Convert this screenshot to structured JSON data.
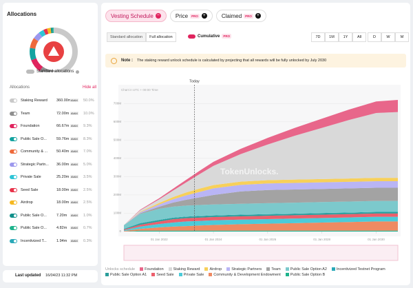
{
  "sidebar": {
    "title": "Allocations",
    "toggle_label": "Standard allocations",
    "list_title": "Allocations",
    "hide_all": "Hide all",
    "unit": "AVAX",
    "rows": [
      {
        "name": "Staking Reward",
        "amount": "360.00m",
        "share": {
          "value": 50.0,
          "label": "50.0%"
        },
        "color": "#c9c9c9"
      },
      {
        "name": "Team",
        "amount": "72.00m",
        "share": {
          "value": 10.0,
          "label": "10.0%"
        },
        "color": "#8f8f8f"
      },
      {
        "name": "Foundation",
        "amount": "66.67m",
        "share": {
          "value": 9.3,
          "label": "9.3%"
        },
        "color": "#e0245e"
      },
      {
        "name": "Public Sale O...",
        "amount": "59.76m",
        "share": {
          "value": 8.3,
          "label": "8.3%"
        },
        "color": "#14a3a0"
      },
      {
        "name": "Community & ...",
        "amount": "50.40m",
        "share": {
          "value": 7.0,
          "label": "7.0%"
        },
        "color": "#ee6a3c"
      },
      {
        "name": "Strategic Partn...",
        "amount": "36.00m",
        "share": {
          "value": 5.0,
          "label": "5.0%"
        },
        "color": "#9c98ee"
      },
      {
        "name": "Private Sale",
        "amount": "25.20m",
        "share": {
          "value": 3.5,
          "label": "3.5%"
        },
        "color": "#2fc4d6"
      },
      {
        "name": "Seed Sale",
        "amount": "18.00m",
        "share": {
          "value": 2.5,
          "label": "2.5%"
        },
        "color": "#e8334a"
      },
      {
        "name": "Airdrop",
        "amount": "18.00m",
        "share": {
          "value": 2.5,
          "label": "2.5%"
        },
        "color": "#f5b820"
      },
      {
        "name": "Public Sale O...",
        "amount": "7.20m",
        "share": {
          "value": 1.0,
          "label": "1.0%"
        },
        "color": "#0f8f8a"
      },
      {
        "name": "Public Sale O...",
        "amount": "4.82m",
        "share": {
          "value": 0.7,
          "label": "0.7%"
        },
        "color": "#1eb38c"
      },
      {
        "name": "Incentivized T...",
        "amount": "1.94m",
        "share": {
          "value": 0.3,
          "label": "0.3%"
        },
        "color": "#2aa9b8"
      }
    ],
    "last_updated_label": "Last updated",
    "last_updated": "16/04/23 11:32 PM"
  },
  "tabs": [
    {
      "label": "Vesting Schedule"
    },
    {
      "label": "Price",
      "badge": "PRO"
    },
    {
      "label": "Claimed",
      "badge": "PRO"
    }
  ],
  "controls": {
    "allocation_buttons": [
      "Standard allocation",
      "Full allocation"
    ],
    "cumulative": "Cumulative",
    "cumulative_badge": "PRO",
    "ranges": [
      "7D",
      "1M",
      "1Y",
      "All"
    ],
    "intervals": [
      "D",
      "W",
      "M"
    ]
  },
  "note": {
    "label": "Note :",
    "text": "The staking reward unlock schedule is calculated by projecting that all rewards will be fully unlocked by July 2030"
  },
  "chart_data": {
    "type": "area",
    "stacked": true,
    "subtitle": "Chart in UTC + 00:00 Time",
    "watermark": "TokenUnlocks.",
    "legend_title": "Unlocks schedule",
    "annotations": [
      {
        "text": "Today",
        "x": 2023.3
      }
    ],
    "x": [
      2020.7,
      2021.3,
      2022,
      2022.5,
      2023,
      2023.5,
      2024,
      2025,
      2026,
      2027,
      2028,
      2029,
      2030,
      2030.8
    ],
    "xlim": [
      2020.7,
      2030.8
    ],
    "xticks": [
      {
        "value": 2022,
        "label": "01 Jan 2022"
      },
      {
        "value": 2024,
        "label": "01 Jan 2024"
      },
      {
        "value": 2026,
        "label": "01 Jan 2026"
      },
      {
        "value": 2028,
        "label": "01 Jan 2028"
      },
      {
        "value": 2030,
        "label": "01 Jan 2030"
      }
    ],
    "ylim": [
      0,
      750
    ],
    "yticks": [
      {
        "value": 0,
        "label": "0"
      },
      {
        "value": 100,
        "label": "100M"
      },
      {
        "value": 200,
        "label": "200M"
      },
      {
        "value": 300,
        "label": "300M"
      },
      {
        "value": 400,
        "label": "400M"
      },
      {
        "value": 500,
        "label": "500M"
      },
      {
        "value": 600,
        "label": "600M"
      },
      {
        "value": 700,
        "label": "700M"
      }
    ],
    "series": [
      {
        "name": "Public Sale Option B",
        "color": "#1eb38c",
        "values": [
          0,
          4.82,
          4.82,
          4.82,
          4.82,
          4.82,
          4.82,
          4.82,
          4.82,
          4.82,
          4.82,
          4.82,
          4.82,
          4.82
        ]
      },
      {
        "name": "Community & Development Endowment",
        "color": "#ef8a62",
        "values": [
          3,
          10,
          18,
          22,
          25,
          28,
          31,
          35,
          38,
          41,
          44,
          47,
          50.4,
          50.4
        ]
      },
      {
        "name": "Private Sale",
        "color": "#4ccbd9",
        "values": [
          4,
          12,
          18,
          22,
          25.2,
          25.2,
          25.2,
          25.2,
          25.2,
          25.2,
          25.2,
          25.2,
          25.2,
          25.2
        ]
      },
      {
        "name": "Seed Sale",
        "color": "#ec5f6c",
        "values": [
          4,
          10,
          14,
          18,
          18,
          18,
          18,
          18,
          18,
          18,
          18,
          18,
          18,
          18
        ]
      },
      {
        "name": "Public Sale Option A1",
        "color": "#2a9d9a",
        "values": [
          2,
          7.2,
          7.2,
          7.2,
          7.2,
          7.2,
          7.2,
          7.2,
          7.2,
          7.2,
          7.2,
          7.2,
          7.2,
          7.2
        ]
      },
      {
        "name": "Incentivized Testnet Program",
        "color": "#2aa9b8",
        "values": [
          1.94,
          1.94,
          1.94,
          1.94,
          1.94,
          1.94,
          1.94,
          1.94,
          1.94,
          1.94,
          1.94,
          1.94,
          1.94,
          1.94
        ]
      },
      {
        "name": "Public Sale Option A2",
        "color": "#7cc9cc",
        "values": [
          20,
          50,
          59.76,
          59.76,
          59.76,
          59.76,
          59.76,
          59.76,
          59.76,
          59.76,
          59.76,
          59.76,
          59.76,
          59.76
        ]
      },
      {
        "name": "Team",
        "color": "#a3a3a3",
        "values": [
          0,
          4,
          12,
          22,
          32,
          42,
          52,
          67,
          72,
          72,
          72,
          72,
          72,
          72
        ]
      },
      {
        "name": "Strategic Partners",
        "color": "#b9b5f5",
        "values": [
          0,
          5,
          12,
          18,
          24,
          30,
          36,
          36,
          36,
          36,
          36,
          36,
          36,
          36
        ]
      },
      {
        "name": "Airdrop",
        "color": "#f7d05a",
        "values": [
          0,
          3,
          8,
          12,
          16,
          18,
          18,
          18,
          18,
          18,
          18,
          18,
          18,
          18
        ]
      },
      {
        "name": "Staking Reward",
        "color": "#d9d9d9",
        "values": [
          0,
          8,
          20,
          35,
          55,
          80,
          105,
          150,
          195,
          240,
          280,
          320,
          355,
          360
        ]
      },
      {
        "name": "Foundation",
        "color": "#e8668a",
        "values": [
          0,
          3,
          6,
          10,
          14,
          18,
          22,
          29,
          36,
          43,
          50,
          57,
          63,
          66.67
        ]
      }
    ]
  }
}
